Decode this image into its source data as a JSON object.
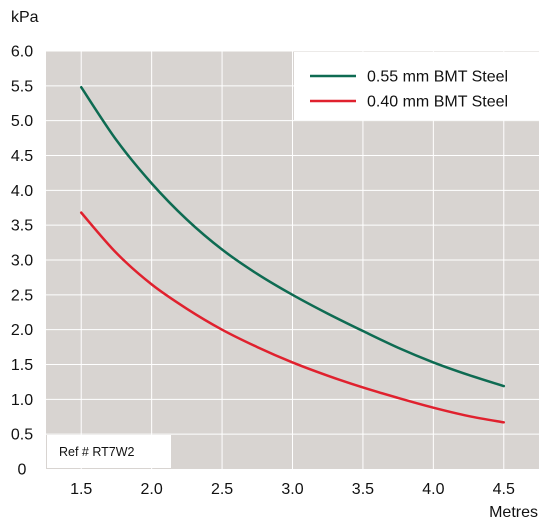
{
  "chart_data": {
    "type": "line",
    "title": "",
    "xlabel": "Metres",
    "ylabel": "kPa",
    "xlim": [
      1.25,
      4.75
    ],
    "ylim": [
      0,
      6.0
    ],
    "x_ticks": [
      "1.5",
      "2.0",
      "2.5",
      "3.0",
      "3.5",
      "4.0",
      "4.5"
    ],
    "y_ticks": [
      "0",
      "0.5",
      "1.0",
      "1.5",
      "2.0",
      "2.5",
      "3.0",
      "3.5",
      "4.0",
      "4.5",
      "5.0",
      "5.5",
      "6.0"
    ],
    "grid": true,
    "legend_position": "top-right",
    "series": [
      {
        "name": "0.55 mm BMT Steel",
        "color": "#0e6b52",
        "x": [
          1.5,
          1.75,
          2.0,
          2.25,
          2.5,
          2.75,
          3.0,
          3.25,
          3.5,
          3.75,
          4.0,
          4.25,
          4.5
        ],
        "y": [
          5.48,
          4.72,
          4.1,
          3.58,
          3.15,
          2.8,
          2.5,
          2.23,
          1.98,
          1.74,
          1.53,
          1.35,
          1.19
        ]
      },
      {
        "name": "0.40 mm BMT Steel",
        "color": "#e0212e",
        "x": [
          1.5,
          1.75,
          2.0,
          2.25,
          2.5,
          2.75,
          3.0,
          3.25,
          3.5,
          3.75,
          4.0,
          4.25,
          4.5
        ],
        "y": [
          3.68,
          3.1,
          2.65,
          2.3,
          2.0,
          1.75,
          1.53,
          1.34,
          1.17,
          1.02,
          0.88,
          0.76,
          0.67
        ]
      }
    ],
    "annotations": [
      "Ref # RT7W2"
    ]
  },
  "colors": {
    "plot_background": "#d8d4d1",
    "gridline": "#ffffff",
    "legend_background": "#ffffff"
  }
}
